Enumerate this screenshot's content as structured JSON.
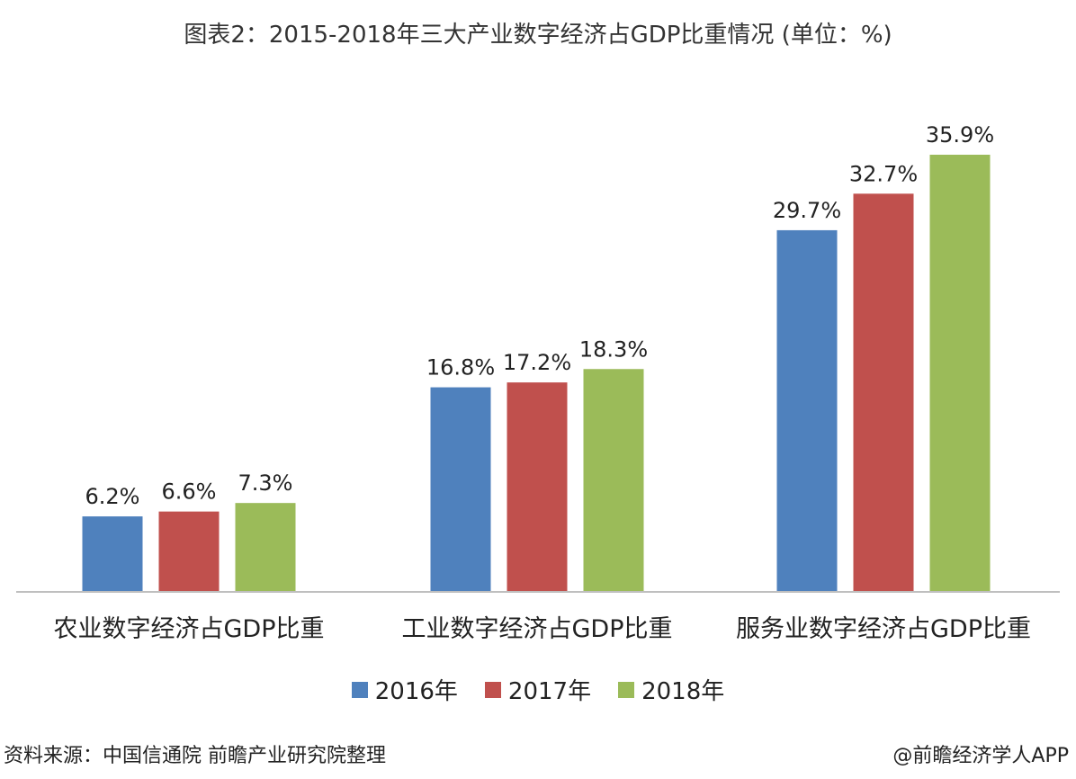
{
  "title": "图表2：2015-2018年三大产业数字经济占GDP比重情况 (单位：%)",
  "source": "资料来源：中国信通院 前瞻产业研究院整理",
  "footer_logo": "@前瞻经济学人APP",
  "colors": {
    "2016年": "#4F81BD",
    "2017年": "#C0504D",
    "2018年": "#9BBB59"
  },
  "chart_data": {
    "type": "bar",
    "title": "图表2：2015-2018年三大产业数字经济占GDP比重情况 (单位：%)",
    "categories": [
      "农业数字经济占GDP比重",
      "工业数字经济占GDP比重",
      "服务业数字经济占GDP比重"
    ],
    "series": [
      {
        "name": "2016年",
        "values": [
          6.2,
          16.8,
          29.7
        ],
        "labels": [
          "6.2%",
          "16.8%",
          "29.7%"
        ]
      },
      {
        "name": "2017年",
        "values": [
          6.6,
          17.2,
          32.7
        ],
        "labels": [
          "6.6%",
          "17.2%",
          "32.7%"
        ]
      },
      {
        "name": "2018年",
        "values": [
          7.3,
          18.3,
          35.9
        ],
        "labels": [
          "7.3%",
          "18.3%",
          "35.9%"
        ]
      }
    ],
    "ylim": [
      0,
      40
    ],
    "grid": false,
    "legend": "bottom"
  }
}
